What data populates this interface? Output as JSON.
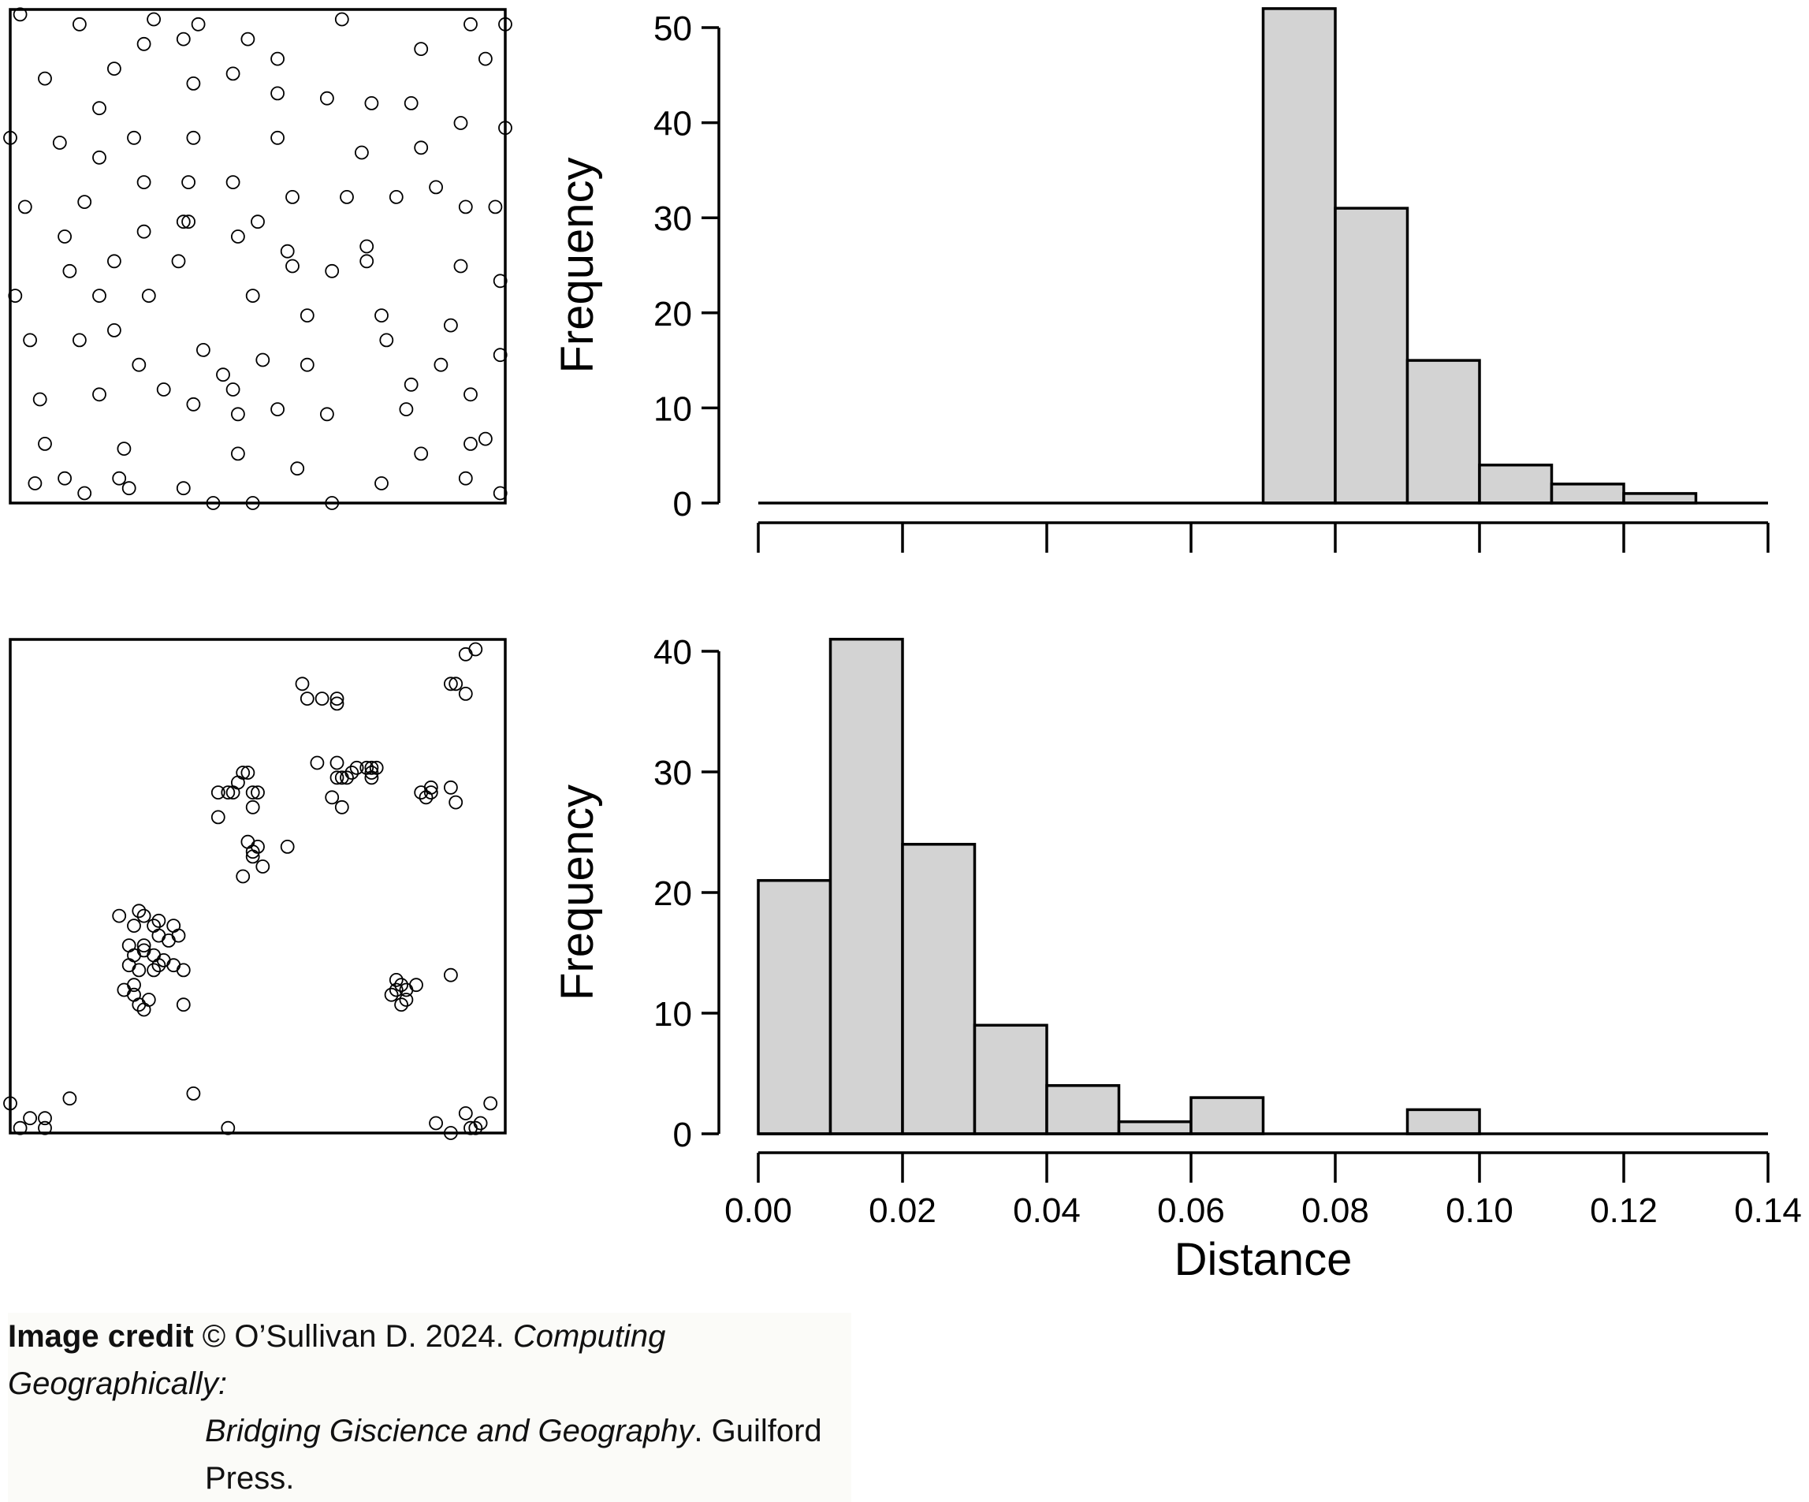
{
  "colors": {
    "bar_fill": "#d3d3d3",
    "stroke": "#000000",
    "background": "#ffffff"
  },
  "chart_data": [
    {
      "type": "scatter",
      "panel": "top-left",
      "title": "",
      "xlabel": "",
      "ylabel": "",
      "xlim": [
        0,
        1
      ],
      "ylim": [
        0,
        1
      ],
      "axes": false,
      "frame": true,
      "marker": "open-circle",
      "points": [
        [
          0.02,
          0.99
        ],
        [
          0.14,
          0.97
        ],
        [
          0.29,
          0.98
        ],
        [
          0.38,
          0.97
        ],
        [
          0.67,
          0.98
        ],
        [
          0.93,
          0.97
        ],
        [
          1.0,
          0.97
        ],
        [
          0.27,
          0.93
        ],
        [
          0.35,
          0.94
        ],
        [
          0.48,
          0.94
        ],
        [
          0.54,
          0.9
        ],
        [
          0.83,
          0.92
        ],
        [
          0.96,
          0.9
        ],
        [
          0.07,
          0.86
        ],
        [
          0.21,
          0.88
        ],
        [
          0.37,
          0.85
        ],
        [
          0.45,
          0.87
        ],
        [
          0.54,
          0.83
        ],
        [
          0.64,
          0.82
        ],
        [
          0.73,
          0.81
        ],
        [
          0.81,
          0.81
        ],
        [
          0.18,
          0.8
        ],
        [
          0.91,
          0.77
        ],
        [
          0.0,
          0.74
        ],
        [
          0.1,
          0.73
        ],
        [
          0.25,
          0.74
        ],
        [
          0.37,
          0.74
        ],
        [
          0.54,
          0.74
        ],
        [
          0.71,
          0.71
        ],
        [
          0.83,
          0.72
        ],
        [
          1.0,
          0.76
        ],
        [
          0.18,
          0.7
        ],
        [
          0.27,
          0.65
        ],
        [
          0.36,
          0.65
        ],
        [
          0.45,
          0.65
        ],
        [
          0.57,
          0.62
        ],
        [
          0.68,
          0.62
        ],
        [
          0.78,
          0.62
        ],
        [
          0.86,
          0.64
        ],
        [
          0.03,
          0.6
        ],
        [
          0.15,
          0.61
        ],
        [
          0.36,
          0.57
        ],
        [
          0.5,
          0.57
        ],
        [
          0.92,
          0.6
        ],
        [
          0.98,
          0.6
        ],
        [
          0.11,
          0.54
        ],
        [
          0.27,
          0.55
        ],
        [
          0.35,
          0.57
        ],
        [
          0.46,
          0.54
        ],
        [
          0.56,
          0.51
        ],
        [
          0.72,
          0.52
        ],
        [
          0.91,
          0.48
        ],
        [
          0.12,
          0.47
        ],
        [
          0.21,
          0.49
        ],
        [
          0.34,
          0.49
        ],
        [
          0.57,
          0.48
        ],
        [
          0.65,
          0.47
        ],
        [
          0.72,
          0.49
        ],
        [
          0.99,
          0.45
        ],
        [
          0.01,
          0.42
        ],
        [
          0.18,
          0.42
        ],
        [
          0.28,
          0.42
        ],
        [
          0.49,
          0.42
        ],
        [
          0.6,
          0.38
        ],
        [
          0.75,
          0.38
        ],
        [
          0.89,
          0.36
        ],
        [
          0.04,
          0.33
        ],
        [
          0.14,
          0.33
        ],
        [
          0.21,
          0.35
        ],
        [
          0.39,
          0.31
        ],
        [
          0.51,
          0.29
        ],
        [
          0.6,
          0.28
        ],
        [
          0.76,
          0.33
        ],
        [
          0.99,
          0.3
        ],
        [
          0.26,
          0.28
        ],
        [
          0.43,
          0.26
        ],
        [
          0.87,
          0.28
        ],
        [
          0.06,
          0.21
        ],
        [
          0.18,
          0.22
        ],
        [
          0.31,
          0.23
        ],
        [
          0.45,
          0.23
        ],
        [
          0.64,
          0.18
        ],
        [
          0.81,
          0.24
        ],
        [
          0.93,
          0.22
        ],
        [
          0.07,
          0.12
        ],
        [
          0.23,
          0.11
        ],
        [
          0.37,
          0.2
        ],
        [
          0.46,
          0.18
        ],
        [
          0.54,
          0.19
        ],
        [
          0.8,
          0.19
        ],
        [
          0.93,
          0.12
        ],
        [
          0.11,
          0.05
        ],
        [
          0.22,
          0.05
        ],
        [
          0.35,
          0.03
        ],
        [
          0.46,
          0.1
        ],
        [
          0.58,
          0.07
        ],
        [
          0.83,
          0.1
        ],
        [
          0.96,
          0.13
        ],
        [
          0.05,
          0.04
        ],
        [
          0.15,
          0.02
        ],
        [
          0.24,
          0.03
        ],
        [
          0.41,
          0.0
        ],
        [
          0.49,
          0.0
        ],
        [
          0.65,
          0.0
        ],
        [
          0.75,
          0.04
        ],
        [
          0.92,
          0.05
        ],
        [
          0.99,
          0.02
        ]
      ]
    },
    {
      "type": "bar",
      "panel": "top-right",
      "title": "",
      "xlabel": "",
      "ylabel": "Frequency",
      "xlim": [
        0,
        0.14
      ],
      "ylim": [
        0,
        50
      ],
      "x_ticks": [
        0,
        0.02,
        0.04,
        0.06,
        0.08,
        0.1,
        0.12,
        0.14
      ],
      "x_tick_labels": [],
      "y_ticks": [
        0,
        10,
        20,
        30,
        40,
        50
      ],
      "y_tick_labels": [
        "0",
        "10",
        "20",
        "30",
        "40",
        "50"
      ],
      "bin_edges": [
        0,
        0.01,
        0.02,
        0.03,
        0.04,
        0.05,
        0.06,
        0.07,
        0.08,
        0.09,
        0.1,
        0.11,
        0.12,
        0.13
      ],
      "values": [
        0,
        0,
        0,
        0,
        0,
        0,
        0,
        52,
        31,
        15,
        4,
        2,
        1
      ]
    },
    {
      "type": "scatter",
      "panel": "bottom-left",
      "title": "",
      "xlabel": "",
      "ylabel": "",
      "xlim": [
        0,
        1
      ],
      "ylim": [
        0,
        1
      ],
      "axes": false,
      "frame": true,
      "marker": "open-circle",
      "points": [
        [
          0.92,
          0.97
        ],
        [
          0.94,
          0.98
        ],
        [
          0.89,
          0.91
        ],
        [
          0.9,
          0.91
        ],
        [
          0.92,
          0.89
        ],
        [
          0.59,
          0.91
        ],
        [
          0.63,
          0.88
        ],
        [
          0.6,
          0.88
        ],
        [
          0.66,
          0.88
        ],
        [
          0.66,
          0.87
        ],
        [
          0.62,
          0.75
        ],
        [
          0.66,
          0.75
        ],
        [
          0.68,
          0.72
        ],
        [
          0.69,
          0.73
        ],
        [
          0.66,
          0.72
        ],
        [
          0.67,
          0.72
        ],
        [
          0.7,
          0.74
        ],
        [
          0.72,
          0.74
        ],
        [
          0.73,
          0.73
        ],
        [
          0.73,
          0.74
        ],
        [
          0.74,
          0.74
        ],
        [
          0.73,
          0.72
        ],
        [
          0.65,
          0.68
        ],
        [
          0.67,
          0.66
        ],
        [
          0.83,
          0.69
        ],
        [
          0.84,
          0.68
        ],
        [
          0.85,
          0.7
        ],
        [
          0.89,
          0.7
        ],
        [
          0.9,
          0.67
        ],
        [
          0.85,
          0.69
        ],
        [
          0.47,
          0.73
        ],
        [
          0.48,
          0.73
        ],
        [
          0.46,
          0.71
        ],
        [
          0.49,
          0.69
        ],
        [
          0.5,
          0.69
        ],
        [
          0.42,
          0.69
        ],
        [
          0.44,
          0.69
        ],
        [
          0.45,
          0.69
        ],
        [
          0.49,
          0.66
        ],
        [
          0.42,
          0.64
        ],
        [
          0.48,
          0.59
        ],
        [
          0.49,
          0.57
        ],
        [
          0.5,
          0.58
        ],
        [
          0.49,
          0.56
        ],
        [
          0.51,
          0.54
        ],
        [
          0.47,
          0.52
        ],
        [
          0.56,
          0.58
        ],
        [
          0.22,
          0.44
        ],
        [
          0.25,
          0.42
        ],
        [
          0.27,
          0.44
        ],
        [
          0.26,
          0.45
        ],
        [
          0.29,
          0.42
        ],
        [
          0.3,
          0.43
        ],
        [
          0.33,
          0.42
        ],
        [
          0.34,
          0.4
        ],
        [
          0.24,
          0.38
        ],
        [
          0.27,
          0.38
        ],
        [
          0.3,
          0.4
        ],
        [
          0.32,
          0.39
        ],
        [
          0.25,
          0.36
        ],
        [
          0.27,
          0.37
        ],
        [
          0.29,
          0.36
        ],
        [
          0.31,
          0.35
        ],
        [
          0.24,
          0.34
        ],
        [
          0.26,
          0.33
        ],
        [
          0.29,
          0.33
        ],
        [
          0.3,
          0.34
        ],
        [
          0.33,
          0.34
        ],
        [
          0.35,
          0.33
        ],
        [
          0.25,
          0.3
        ],
        [
          0.23,
          0.29
        ],
        [
          0.25,
          0.28
        ],
        [
          0.28,
          0.27
        ],
        [
          0.26,
          0.26
        ],
        [
          0.35,
          0.26
        ],
        [
          0.27,
          0.25
        ],
        [
          0.78,
          0.31
        ],
        [
          0.79,
          0.3
        ],
        [
          0.78,
          0.29
        ],
        [
          0.8,
          0.29
        ],
        [
          0.82,
          0.3
        ],
        [
          0.8,
          0.27
        ],
        [
          0.79,
          0.26
        ],
        [
          0.77,
          0.28
        ],
        [
          0.89,
          0.32
        ],
        [
          0.0,
          0.06
        ],
        [
          0.04,
          0.03
        ],
        [
          0.07,
          0.03
        ],
        [
          0.02,
          0.01
        ],
        [
          0.07,
          0.01
        ],
        [
          0.12,
          0.07
        ],
        [
          0.37,
          0.08
        ],
        [
          0.44,
          0.01
        ],
        [
          0.86,
          0.02
        ],
        [
          0.89,
          0.0
        ],
        [
          0.92,
          0.04
        ],
        [
          0.93,
          0.01
        ],
        [
          0.94,
          0.01
        ],
        [
          0.95,
          0.02
        ],
        [
          0.97,
          0.06
        ]
      ]
    },
    {
      "type": "bar",
      "panel": "bottom-right",
      "title": "",
      "xlabel": "Distance",
      "ylabel": "Frequency",
      "xlim": [
        0,
        0.14
      ],
      "ylim": [
        0,
        41
      ],
      "x_ticks": [
        0,
        0.02,
        0.04,
        0.06,
        0.08,
        0.1,
        0.12,
        0.14
      ],
      "x_tick_labels": [
        "0.00",
        "0.02",
        "0.04",
        "0.06",
        "0.08",
        "0.10",
        "0.12",
        "0.14"
      ],
      "y_ticks": [
        0,
        10,
        20,
        30,
        40
      ],
      "y_tick_labels": [
        "0",
        "10",
        "20",
        "30",
        "40"
      ],
      "bin_edges": [
        0,
        0.01,
        0.02,
        0.03,
        0.04,
        0.05,
        0.06,
        0.07,
        0.08,
        0.09,
        0.1,
        0.11,
        0.12,
        0.13,
        0.14
      ],
      "values": [
        21,
        41,
        24,
        9,
        4,
        1,
        3,
        0,
        0,
        2,
        0,
        0,
        0,
        0
      ]
    }
  ],
  "credit": {
    "label": "Image credit",
    "text": "© O’Sullivan D. 2024.",
    "title_line1": "Computing Geographically:",
    "title_line2": "Bridging Giscience and Geography",
    "publisher": ". Guilford Press."
  }
}
